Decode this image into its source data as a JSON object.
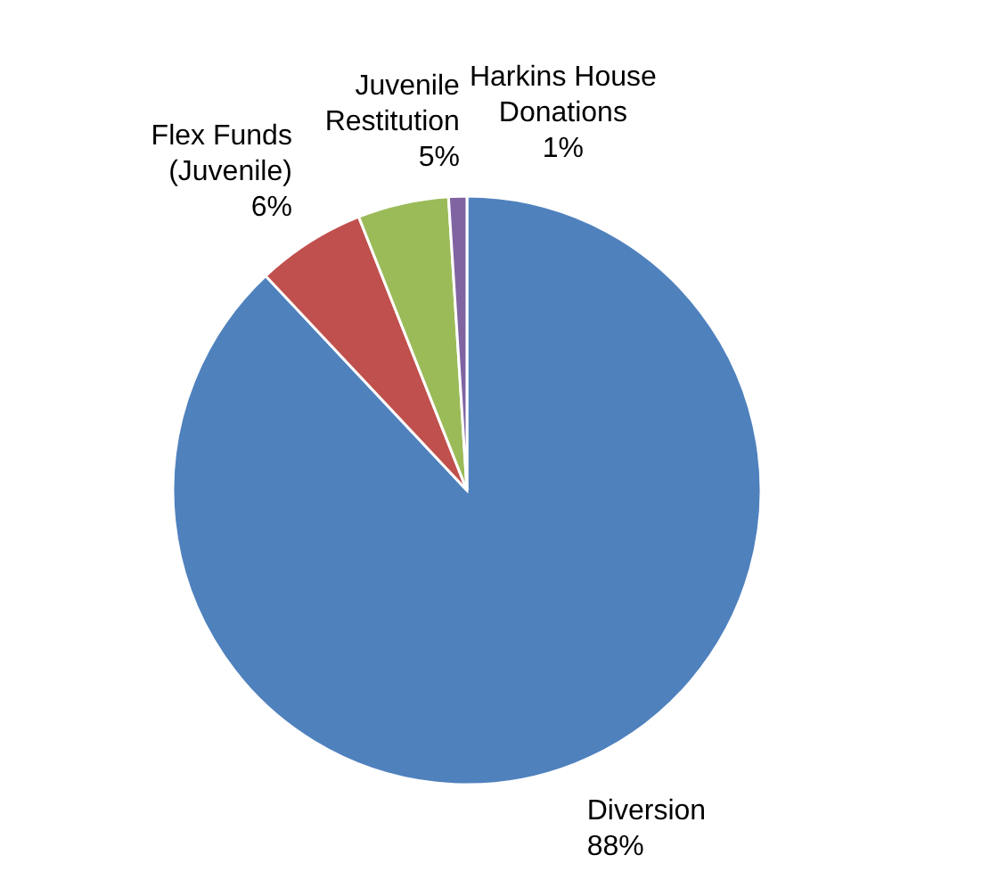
{
  "chart_data": {
    "type": "pie",
    "categories": [
      "Diversion",
      "Flex Funds (Juvenile)",
      "Juvenile Restitution",
      "Harkins House Donations"
    ],
    "values": [
      88,
      6,
      5,
      1
    ],
    "value_labels": [
      "88%",
      "6%",
      "5%",
      "1%"
    ],
    "colors": [
      "#4f81bd",
      "#c0504d",
      "#9bbb59",
      "#8064a2"
    ]
  }
}
